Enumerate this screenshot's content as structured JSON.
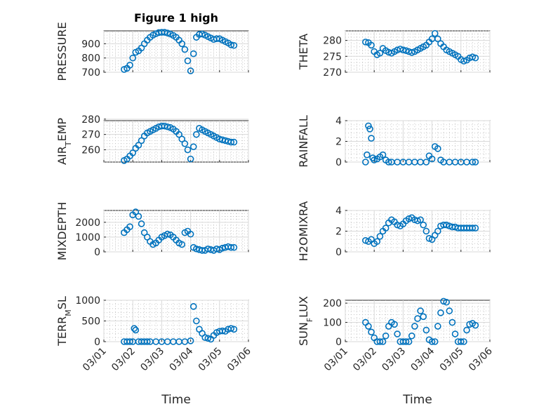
{
  "figure": {
    "title": "Figure 1 high"
  },
  "chart_data": [
    {
      "type": "scatter",
      "ylabel": "PRESSURE",
      "ylim": [
        700,
        990
      ],
      "yticks": [
        700,
        800,
        900
      ],
      "yticklabels": [
        "700",
        "800",
        "900"
      ],
      "xlim": [
        0,
        5
      ],
      "title": "Figure 1 high",
      "x": [
        0.7,
        0.8,
        0.9,
        1.0,
        1.1,
        1.2,
        1.3,
        1.4,
        1.5,
        1.6,
        1.7,
        1.8,
        1.9,
        2.0,
        2.1,
        2.2,
        2.3,
        2.4,
        2.5,
        2.6,
        2.7,
        2.8,
        2.9,
        3.0,
        3.1,
        3.2,
        3.3,
        3.4,
        3.5,
        3.6,
        3.7,
        3.8,
        3.9,
        4.0,
        4.1,
        4.2,
        4.3,
        4.4,
        4.5
      ],
      "y": [
        720,
        728,
        750,
        800,
        840,
        850,
        870,
        900,
        925,
        945,
        960,
        970,
        978,
        980,
        980,
        975,
        968,
        958,
        945,
        925,
        900,
        860,
        780,
        710,
        830,
        945,
        965,
        968,
        960,
        950,
        940,
        930,
        935,
        935,
        925,
        915,
        905,
        892,
        888
      ]
    },
    {
      "type": "scatter",
      "ylabel": "THETA",
      "ylim": [
        270,
        283
      ],
      "yticks": [
        270,
        275,
        280
      ],
      "yticklabels": [
        "270",
        "275",
        "280"
      ],
      "xlim": [
        0,
        5
      ],
      "x": [
        0.7,
        0.8,
        0.9,
        1.0,
        1.1,
        1.2,
        1.3,
        1.4,
        1.5,
        1.6,
        1.7,
        1.8,
        1.9,
        2.0,
        2.1,
        2.2,
        2.3,
        2.4,
        2.5,
        2.6,
        2.7,
        2.8,
        2.9,
        3.0,
        3.1,
        3.2,
        3.3,
        3.4,
        3.5,
        3.6,
        3.7,
        3.8,
        3.9,
        4.0,
        4.1,
        4.2,
        4.3,
        4.4,
        4.5
      ],
      "y": [
        279.5,
        279.3,
        278.5,
        276.5,
        275.5,
        276.0,
        277.5,
        276.8,
        276.3,
        276.0,
        276.5,
        277.0,
        277.3,
        277.0,
        276.8,
        276.5,
        276.2,
        276.5,
        277.0,
        277.5,
        278.0,
        278.5,
        279.5,
        280.5,
        282.2,
        280.5,
        279.0,
        278.0,
        277.0,
        276.5,
        276.0,
        275.5,
        275.0,
        274.0,
        273.5,
        273.8,
        274.5,
        274.8,
        274.5
      ]
    },
    {
      "type": "scatter",
      "ylabel": "AIR_TEMP",
      "ylim": [
        252,
        279
      ],
      "yticks": [
        260,
        270,
        280
      ],
      "yticklabels": [
        "260",
        "270",
        "280"
      ],
      "xlim": [
        0,
        5
      ],
      "x": [
        0.7,
        0.8,
        0.9,
        1.0,
        1.1,
        1.2,
        1.3,
        1.4,
        1.5,
        1.6,
        1.7,
        1.8,
        1.9,
        2.0,
        2.1,
        2.2,
        2.3,
        2.4,
        2.5,
        2.6,
        2.7,
        2.8,
        2.9,
        3.0,
        3.1,
        3.2,
        3.3,
        3.4,
        3.5,
        3.6,
        3.7,
        3.8,
        3.9,
        4.0,
        4.1,
        4.2,
        4.3,
        4.4,
        4.5
      ],
      "y": [
        253,
        254,
        256,
        258,
        261,
        263,
        266,
        269,
        271,
        272,
        273,
        274,
        275,
        275.5,
        275.5,
        275,
        274.5,
        273.5,
        272,
        270,
        267,
        264,
        260,
        254,
        262,
        270,
        274,
        273,
        272,
        271,
        270,
        269,
        268,
        267,
        266.5,
        266,
        265.5,
        265,
        265
      ]
    },
    {
      "type": "scatter",
      "ylabel": "RAINFALL",
      "ylim": [
        0,
        4
      ],
      "yticks": [
        0,
        2,
        4
      ],
      "yticklabels": [
        "0",
        "2",
        "4"
      ],
      "xlim": [
        0,
        5
      ],
      "x": [
        0.7,
        0.75,
        0.8,
        0.85,
        0.9,
        0.95,
        1.0,
        1.1,
        1.2,
        1.3,
        1.4,
        1.5,
        1.6,
        1.8,
        2.0,
        2.2,
        2.4,
        2.6,
        2.8,
        2.9,
        3.0,
        3.1,
        3.2,
        3.3,
        3.4,
        3.6,
        3.8,
        4.0,
        4.2,
        4.4,
        4.5
      ],
      "y": [
        0,
        0.7,
        3.5,
        3.2,
        2.3,
        0.4,
        0.2,
        0.3,
        0.5,
        0.7,
        0.2,
        0,
        0,
        0,
        0,
        0,
        0,
        0,
        0,
        0.6,
        0.3,
        1.5,
        1.3,
        0.2,
        0,
        0,
        0,
        0,
        0,
        0,
        0
      ]
    },
    {
      "type": "scatter",
      "ylabel": "MIXDEPTH",
      "ylim": [
        0,
        2800
      ],
      "yticks": [
        0,
        1000,
        2000
      ],
      "yticklabels": [
        "0",
        "1000",
        "2000"
      ],
      "xlim": [
        0,
        5
      ],
      "x": [
        0.7,
        0.8,
        0.9,
        1.0,
        1.1,
        1.2,
        1.3,
        1.4,
        1.5,
        1.6,
        1.7,
        1.8,
        1.9,
        2.0,
        2.1,
        2.2,
        2.3,
        2.4,
        2.5,
        2.6,
        2.7,
        2.8,
        2.9,
        3.0,
        3.1,
        3.2,
        3.3,
        3.4,
        3.5,
        3.6,
        3.7,
        3.8,
        3.9,
        4.0,
        4.1,
        4.2,
        4.3,
        4.4,
        4.5
      ],
      "y": [
        1300,
        1500,
        1700,
        2500,
        2700,
        2400,
        1900,
        1300,
        1000,
        700,
        500,
        600,
        800,
        1000,
        1100,
        1200,
        1150,
        1000,
        800,
        600,
        500,
        1300,
        1400,
        1200,
        300,
        200,
        150,
        100,
        100,
        200,
        150,
        100,
        200,
        150,
        250,
        300,
        350,
        300,
        300
      ]
    },
    {
      "type": "scatter",
      "ylabel": "H2OMIXRA",
      "ylim": [
        0,
        4
      ],
      "yticks": [
        0,
        2,
        4
      ],
      "yticklabels": [
        "0",
        "2",
        "4"
      ],
      "xlim": [
        0,
        5
      ],
      "x": [
        0.7,
        0.8,
        0.9,
        1.0,
        1.1,
        1.2,
        1.3,
        1.4,
        1.5,
        1.6,
        1.7,
        1.8,
        1.9,
        2.0,
        2.1,
        2.2,
        2.3,
        2.4,
        2.5,
        2.6,
        2.7,
        2.8,
        2.9,
        3.0,
        3.1,
        3.2,
        3.3,
        3.4,
        3.5,
        3.6,
        3.7,
        3.8,
        3.9,
        4.0,
        4.1,
        4.2,
        4.3,
        4.4,
        4.5
      ],
      "y": [
        1.1,
        1.0,
        1.2,
        0.8,
        1.0,
        1.5,
        2.0,
        2.3,
        2.8,
        3.1,
        2.9,
        2.6,
        2.5,
        2.7,
        3.0,
        3.2,
        3.3,
        3.1,
        3.0,
        3.1,
        2.6,
        2.0,
        1.3,
        1.2,
        1.6,
        2.0,
        2.5,
        2.6,
        2.6,
        2.5,
        2.4,
        2.4,
        2.3,
        2.3,
        2.3,
        2.3,
        2.3,
        2.3,
        2.3
      ]
    },
    {
      "type": "scatter",
      "ylabel": "TERR_MSL",
      "ylim": [
        0,
        1000
      ],
      "yticks": [
        0,
        500,
        1000
      ],
      "yticklabels": [
        "0",
        "500",
        "1000"
      ],
      "xlim": [
        0,
        5
      ],
      "xticks": [
        0,
        1,
        2,
        3,
        4,
        5
      ],
      "xticklabels": [
        "03/01",
        "03/02",
        "03/03",
        "03/04",
        "03/05",
        "03/06"
      ],
      "xlabel": "Time",
      "x": [
        0.7,
        0.8,
        0.9,
        1.0,
        1.05,
        1.1,
        1.2,
        1.3,
        1.4,
        1.5,
        1.6,
        1.8,
        2.0,
        2.2,
        2.4,
        2.6,
        2.8,
        3.0,
        3.1,
        3.2,
        3.3,
        3.4,
        3.5,
        3.6,
        3.7,
        3.8,
        3.9,
        4.0,
        4.1,
        4.2,
        4.3,
        4.4,
        4.5
      ],
      "y": [
        0,
        0,
        0,
        0,
        320,
        280,
        0,
        0,
        0,
        0,
        0,
        0,
        0,
        0,
        0,
        0,
        0,
        20,
        850,
        500,
        300,
        200,
        100,
        80,
        60,
        150,
        220,
        250,
        260,
        250,
        300,
        320,
        300
      ]
    },
    {
      "type": "scatter",
      "ylabel": "SUN_FLUX",
      "ylim": [
        0,
        215
      ],
      "yticks": [
        0,
        100,
        200
      ],
      "yticklabels": [
        "0",
        "100",
        "200"
      ],
      "xlim": [
        0,
        5
      ],
      "xticks": [
        0,
        1,
        2,
        3,
        4,
        5
      ],
      "xticklabels": [
        "03/01",
        "03/02",
        "03/03",
        "03/04",
        "03/05",
        "03/06"
      ],
      "xlabel": "Time",
      "x": [
        0.7,
        0.8,
        0.9,
        1.0,
        1.1,
        1.2,
        1.3,
        1.4,
        1.5,
        1.6,
        1.7,
        1.8,
        1.9,
        2.0,
        2.1,
        2.2,
        2.3,
        2.4,
        2.5,
        2.6,
        2.7,
        2.8,
        2.9,
        3.0,
        3.1,
        3.2,
        3.3,
        3.4,
        3.5,
        3.6,
        3.7,
        3.8,
        3.9,
        4.0,
        4.1,
        4.2,
        4.3,
        4.4,
        4.5
      ],
      "y": [
        100,
        80,
        50,
        20,
        0,
        0,
        0,
        30,
        80,
        100,
        90,
        40,
        0,
        0,
        0,
        0,
        30,
        80,
        120,
        160,
        130,
        60,
        10,
        0,
        0,
        80,
        150,
        210,
        205,
        160,
        100,
        40,
        0,
        0,
        0,
        60,
        90,
        95,
        85
      ]
    }
  ]
}
